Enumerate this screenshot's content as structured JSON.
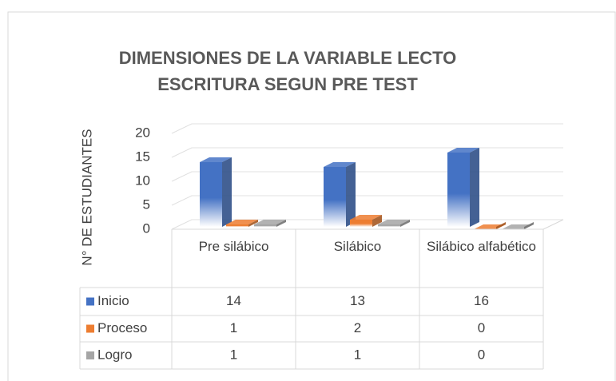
{
  "chart_data": {
    "type": "bar3d",
    "title": "DIMENSIONES DE LA VARIABLE LECTO ESCRITURA SEGUN PRE TEST",
    "y_label": "N° DE ESTUDIANTES",
    "categories": [
      "Pre silábico",
      "Silábico",
      "Silábico alfabético"
    ],
    "series": [
      {
        "name": "Inicio",
        "color": "#4472c4",
        "values": [
          14,
          13,
          16
        ]
      },
      {
        "name": "Proceso",
        "color": "#ed7d31",
        "values": [
          1,
          2,
          0
        ]
      },
      {
        "name": "Logro",
        "color": "#a5a5a5",
        "values": [
          1,
          1,
          0
        ]
      }
    ],
    "ylim": [
      0,
      20
    ],
    "yticks": [
      0,
      5,
      10,
      15,
      20
    ],
    "grid": true,
    "data_table": true
  }
}
